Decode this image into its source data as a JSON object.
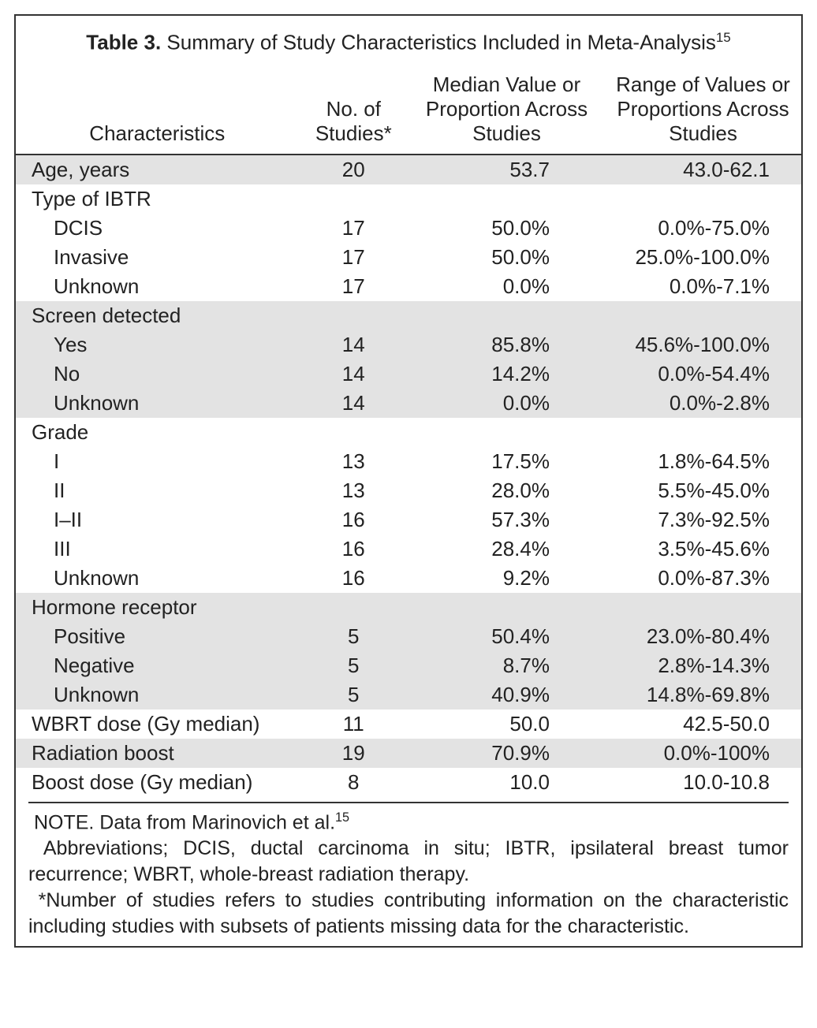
{
  "title": {
    "label": "Table 3.",
    "text": "Summary of Study Characteristics Included in Meta-Analysis",
    "sup": "15"
  },
  "headers": {
    "c0": "Characteristics",
    "c1": "No. of Studies*",
    "c2": "Median Value or Proportion Across Studies",
    "c3": "Range of Values or Proportions Across Studies"
  },
  "rows": [
    {
      "characteristic": "Age, years",
      "studies": "20",
      "median": "53.7",
      "range": "43.0-62.1",
      "shaded": true
    },
    {
      "characteristic": "Type of IBTR",
      "studies": "",
      "median": "",
      "range": "",
      "shaded": false
    },
    {
      "characteristic": "DCIS",
      "indent": true,
      "studies": "17",
      "median": "50.0%",
      "range": "0.0%-75.0%",
      "shaded": false
    },
    {
      "characteristic": "Invasive",
      "indent": true,
      "studies": "17",
      "median": "50.0%",
      "range": "25.0%-100.0%",
      "shaded": false
    },
    {
      "characteristic": "Unknown",
      "indent": true,
      "studies": "17",
      "median": "0.0%",
      "range": "0.0%-7.1%",
      "shaded": false
    },
    {
      "characteristic": "Screen detected",
      "studies": "",
      "median": "",
      "range": "",
      "shaded": true
    },
    {
      "characteristic": "Yes",
      "indent": true,
      "studies": "14",
      "median": "85.8%",
      "range": "45.6%-100.0%",
      "shaded": true
    },
    {
      "characteristic": "No",
      "indent": true,
      "studies": "14",
      "median": "14.2%",
      "range": "0.0%-54.4%",
      "shaded": true
    },
    {
      "characteristic": "Unknown",
      "indent": true,
      "studies": "14",
      "median": "0.0%",
      "range": "0.0%-2.8%",
      "shaded": true
    },
    {
      "characteristic": "Grade",
      "studies": "",
      "median": "",
      "range": "",
      "shaded": false
    },
    {
      "characteristic": "I",
      "indent": true,
      "studies": "13",
      "median": "17.5%",
      "range": "1.8%-64.5%",
      "shaded": false
    },
    {
      "characteristic": "II",
      "indent": true,
      "studies": "13",
      "median": "28.0%",
      "range": "5.5%-45.0%",
      "shaded": false
    },
    {
      "characteristic": "I–II",
      "indent": true,
      "studies": "16",
      "median": "57.3%",
      "range": "7.3%-92.5%",
      "shaded": false
    },
    {
      "characteristic": "III",
      "indent": true,
      "studies": "16",
      "median": "28.4%",
      "range": "3.5%-45.6%",
      "shaded": false
    },
    {
      "characteristic": "Unknown",
      "indent": true,
      "studies": "16",
      "median": "9.2%",
      "range": "0.0%-87.3%",
      "shaded": false
    },
    {
      "characteristic": "Hormone receptor",
      "studies": "",
      "median": "",
      "range": "",
      "shaded": true
    },
    {
      "characteristic": "Positive",
      "indent": true,
      "studies": "5",
      "median": "50.4%",
      "range": "23.0%-80.4%",
      "shaded": true
    },
    {
      "characteristic": "Negative",
      "indent": true,
      "studies": "5",
      "median": "8.7%",
      "range": "2.8%-14.3%",
      "shaded": true
    },
    {
      "characteristic": "Unknown",
      "indent": true,
      "studies": "5",
      "median": "40.9%",
      "range": "14.8%-69.8%",
      "shaded": true
    },
    {
      "characteristic": "WBRT dose (Gy median)",
      "studies": "11",
      "median": "50.0",
      "range": "42.5-50.0",
      "shaded": false
    },
    {
      "characteristic": "Radiation boost",
      "studies": "19",
      "median": "70.9%",
      "range": "0.0%-100%",
      "shaded": true
    },
    {
      "characteristic": "Boost dose (Gy median)",
      "studies": "8",
      "median": "10.0",
      "range": "10.0-10.8",
      "shaded": false
    }
  ],
  "footer": {
    "note_prefix": "NOTE. Data from Marinovich et al.",
    "note_sup": "15",
    "abbrev": "Abbreviations; DCIS, ductal carcinoma in situ; IBTR, ipsilateral breast tumor recurrence; WBRT, whole-breast radiation therapy.",
    "star": "*Number of studies refers to studies contributing information on the characteristic including studies with subsets of patients missing data for the characteristic."
  }
}
